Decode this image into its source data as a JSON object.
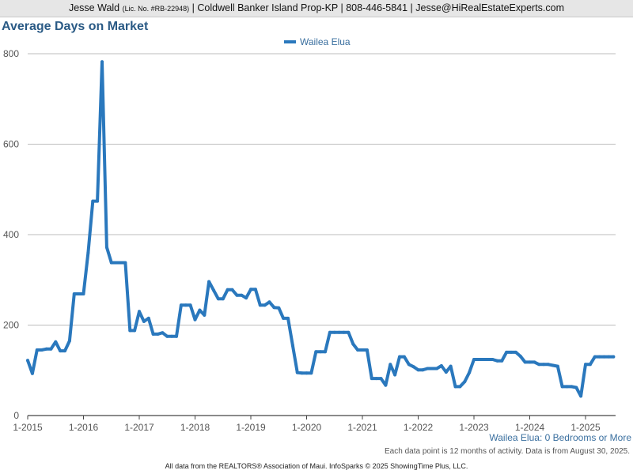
{
  "header": {
    "agent_name": "Jesse Wald",
    "license": "(Lic. No. #RB-22948)",
    "contact": "| Coldwell Banker Island Prop-KP | 808-446-5841 | Jesse@HiRealEstateExperts.com"
  },
  "chart_data": {
    "type": "line",
    "title": "Average Days on Market",
    "xlabel": "",
    "ylabel": "",
    "ylim": [
      0,
      800
    ],
    "yticks": [
      0,
      200,
      400,
      600,
      800
    ],
    "xticks": [
      "1-2015",
      "1-2016",
      "1-2017",
      "1-2018",
      "1-2019",
      "1-2020",
      "1-2021",
      "1-2022",
      "1-2023",
      "1-2024",
      "1-2025"
    ],
    "grid": true,
    "legend_position": "top-center",
    "series_color": "#2a78bd",
    "series": [
      {
        "name": "Wailea Elua",
        "points": [
          [
            "2015-01",
            122
          ],
          [
            "2015-02",
            93
          ],
          [
            "2015-03",
            145
          ],
          [
            "2015-04",
            145
          ],
          [
            "2015-05",
            147
          ],
          [
            "2015-06",
            147
          ],
          [
            "2015-07",
            163
          ],
          [
            "2015-08",
            143
          ],
          [
            "2015-09",
            143
          ],
          [
            "2015-10",
            165
          ],
          [
            "2015-11",
            269
          ],
          [
            "2015-12",
            269
          ],
          [
            "2016-01",
            269
          ],
          [
            "2016-02",
            360
          ],
          [
            "2016-03",
            474
          ],
          [
            "2016-04",
            474
          ],
          [
            "2016-05",
            782
          ],
          [
            "2016-06",
            372
          ],
          [
            "2016-07",
            338
          ],
          [
            "2016-08",
            338
          ],
          [
            "2016-09",
            338
          ],
          [
            "2016-10",
            338
          ],
          [
            "2016-11",
            188
          ],
          [
            "2016-12",
            188
          ],
          [
            "2017-01",
            230
          ],
          [
            "2017-02",
            208
          ],
          [
            "2017-03",
            215
          ],
          [
            "2017-04",
            180
          ],
          [
            "2017-05",
            180
          ],
          [
            "2017-06",
            183
          ],
          [
            "2017-07",
            175
          ],
          [
            "2017-08",
            175
          ],
          [
            "2017-09",
            175
          ],
          [
            "2017-10",
            244
          ],
          [
            "2017-11",
            244
          ],
          [
            "2017-12",
            244
          ],
          [
            "2018-01",
            212
          ],
          [
            "2018-02",
            233
          ],
          [
            "2018-03",
            222
          ],
          [
            "2018-04",
            296
          ],
          [
            "2018-05",
            277
          ],
          [
            "2018-06",
            258
          ],
          [
            "2018-07",
            258
          ],
          [
            "2018-08",
            278
          ],
          [
            "2018-09",
            278
          ],
          [
            "2018-10",
            266
          ],
          [
            "2018-11",
            266
          ],
          [
            "2018-12",
            260
          ],
          [
            "2019-01",
            279
          ],
          [
            "2019-02",
            279
          ],
          [
            "2019-03",
            244
          ],
          [
            "2019-04",
            244
          ],
          [
            "2019-05",
            251
          ],
          [
            "2019-06",
            239
          ],
          [
            "2019-07",
            238
          ],
          [
            "2019-08",
            215
          ],
          [
            "2019-09",
            215
          ],
          [
            "2019-10",
            155
          ],
          [
            "2019-11",
            95
          ],
          [
            "2019-12",
            94
          ],
          [
            "2020-01",
            94
          ],
          [
            "2020-02",
            94
          ],
          [
            "2020-03",
            141
          ],
          [
            "2020-04",
            141
          ],
          [
            "2020-05",
            141
          ],
          [
            "2020-06",
            184
          ],
          [
            "2020-07",
            184
          ],
          [
            "2020-08",
            184
          ],
          [
            "2020-09",
            184
          ],
          [
            "2020-10",
            184
          ],
          [
            "2020-11",
            158
          ],
          [
            "2020-12",
            145
          ],
          [
            "2021-01",
            145
          ],
          [
            "2021-02",
            145
          ],
          [
            "2021-03",
            82
          ],
          [
            "2021-04",
            82
          ],
          [
            "2021-05",
            82
          ],
          [
            "2021-06",
            67
          ],
          [
            "2021-07",
            113
          ],
          [
            "2021-08",
            90
          ],
          [
            "2021-09",
            130
          ],
          [
            "2021-10",
            130
          ],
          [
            "2021-11",
            113
          ],
          [
            "2021-12",
            108
          ],
          [
            "2022-01",
            101
          ],
          [
            "2022-02",
            101
          ],
          [
            "2022-03",
            104
          ],
          [
            "2022-04",
            104
          ],
          [
            "2022-05",
            104
          ],
          [
            "2022-06",
            110
          ],
          [
            "2022-07",
            96
          ],
          [
            "2022-08",
            109
          ],
          [
            "2022-09",
            64
          ],
          [
            "2022-10",
            64
          ],
          [
            "2022-11",
            75
          ],
          [
            "2022-12",
            95
          ],
          [
            "2023-01",
            124
          ],
          [
            "2023-02",
            124
          ],
          [
            "2023-03",
            124
          ],
          [
            "2023-04",
            124
          ],
          [
            "2023-05",
            124
          ],
          [
            "2023-06",
            121
          ],
          [
            "2023-07",
            121
          ],
          [
            "2023-08",
            140
          ],
          [
            "2023-09",
            140
          ],
          [
            "2023-10",
            140
          ],
          [
            "2023-11",
            131
          ],
          [
            "2023-12",
            118
          ],
          [
            "2024-01",
            118
          ],
          [
            "2024-02",
            118
          ],
          [
            "2024-03",
            113
          ],
          [
            "2024-04",
            113
          ],
          [
            "2024-05",
            113
          ],
          [
            "2024-06",
            111
          ],
          [
            "2024-07",
            109
          ],
          [
            "2024-08",
            64
          ],
          [
            "2024-09",
            64
          ],
          [
            "2024-10",
            64
          ],
          [
            "2024-11",
            62
          ],
          [
            "2024-12",
            43
          ],
          [
            "2025-01",
            113
          ],
          [
            "2025-02",
            113
          ],
          [
            "2025-03",
            130
          ],
          [
            "2025-04",
            130
          ],
          [
            "2025-05",
            130
          ],
          [
            "2025-06",
            130
          ],
          [
            "2025-07",
            130
          ]
        ]
      }
    ]
  },
  "notes": {
    "subtitle": "Wailea Elua: 0 Bedrooms or More",
    "activity": "Each data point is 12 months of activity. Data is from August 30, 2025.",
    "footer": "All data from the REALTORS® Association of Maui. InfoSparks © 2025 ShowingTime Plus, LLC."
  }
}
